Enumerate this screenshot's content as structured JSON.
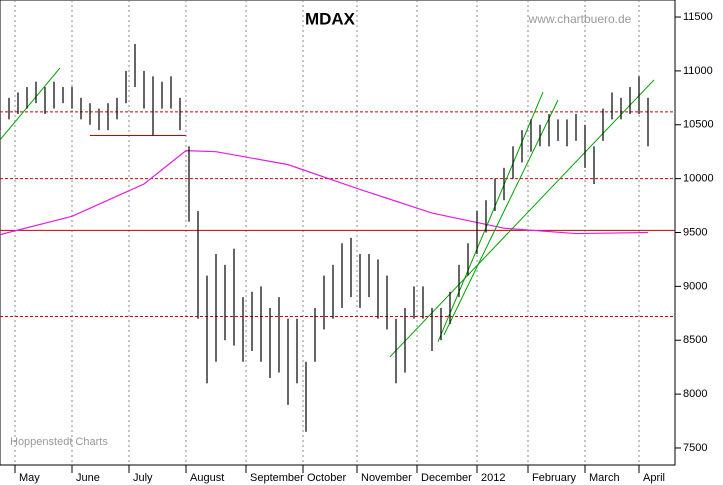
{
  "chart_data": {
    "type": "hilo",
    "title": "MDAX",
    "source": "www.chartbuero.de",
    "credit": "Hoppenstedt Charts",
    "xlim": [
      0,
      225
    ],
    "ylim": [
      7342,
      11658
    ],
    "yticks": [
      7500,
      8000,
      8500,
      9000,
      9500,
      10000,
      10500,
      11000,
      11500
    ],
    "xticks": [
      {
        "value": 5,
        "label": "May"
      },
      {
        "value": 24,
        "label": "June"
      },
      {
        "value": 43,
        "label": "July"
      },
      {
        "value": 62,
        "label": "August"
      },
      {
        "value": 82,
        "label": "September"
      },
      {
        "value": 101,
        "label": "October"
      },
      {
        "value": 119,
        "label": "November"
      },
      {
        "value": 139,
        "label": "December"
      },
      {
        "value": 159,
        "label": "2012"
      },
      {
        "value": 176,
        "label": "February"
      },
      {
        "value": 195,
        "label": "March"
      },
      {
        "value": 213,
        "label": "April"
      }
    ],
    "grid": true,
    "color": "#000000",
    "x": [
      0,
      3,
      6,
      9,
      12,
      15,
      18,
      21,
      24,
      27,
      30,
      33,
      36,
      39,
      42,
      45,
      48,
      51,
      54,
      57,
      60,
      63,
      66,
      69,
      72,
      75,
      78,
      81,
      84,
      87,
      90,
      93,
      96,
      99,
      102,
      105,
      108,
      111,
      114,
      117,
      120,
      123,
      126,
      129,
      132,
      135,
      138,
      141,
      144,
      147,
      150,
      153,
      156,
      159,
      162,
      165,
      168,
      171,
      174,
      177,
      180,
      183,
      186,
      189,
      192,
      195,
      198,
      201,
      204,
      207,
      210,
      213,
      216
    ],
    "high": [
      10600,
      10750,
      10800,
      10850,
      10900,
      10850,
      10900,
      10850,
      10850,
      10750,
      10700,
      10650,
      10700,
      10750,
      11000,
      11250,
      11000,
      10950,
      10900,
      10950,
      10750,
      10300,
      9700,
      9100,
      9300,
      9200,
      9350,
      8900,
      8950,
      9000,
      8800,
      8900,
      8700,
      8700,
      8300,
      8800,
      9100,
      9200,
      9400,
      9450,
      9300,
      9300,
      9250,
      9100,
      8700,
      8800,
      9000,
      9000,
      8800,
      8800,
      8950,
      9200,
      9400,
      9700,
      9800,
      10000,
      10100,
      10300,
      10450,
      10550,
      10500,
      10600,
      10550,
      10550,
      10600,
      10500,
      10300,
      10650,
      10800,
      10750,
      10850,
      10950,
      10750
    ],
    "low": [
      10450,
      10550,
      10600,
      10650,
      10700,
      10600,
      10650,
      10700,
      10650,
      10550,
      10500,
      10450,
      10450,
      10550,
      10700,
      10850,
      10650,
      10400,
      10650,
      10650,
      10450,
      9600,
      8700,
      8100,
      8300,
      8500,
      8450,
      8300,
      8400,
      8300,
      8150,
      8200,
      7900,
      8100,
      7650,
      8300,
      8600,
      8700,
      8800,
      8900,
      8800,
      8900,
      8700,
      8600,
      8100,
      8200,
      8700,
      8700,
      8400,
      8500,
      8650,
      8900,
      9100,
      9300,
      9500,
      9700,
      9800,
      10000,
      10150,
      10250,
      10300,
      10300,
      10350,
      10300,
      10350,
      10100,
      9950,
      10350,
      10550,
      10550,
      10600,
      10600,
      10300
    ],
    "ma": {
      "color": "#e020e0",
      "x": [
        0,
        24,
        48,
        62,
        72,
        96,
        120,
        144,
        168,
        192,
        216
      ],
      "values": [
        9480,
        9650,
        9950,
        10260,
        10250,
        10130,
        9900,
        9680,
        9540,
        9490,
        9500
      ]
    },
    "levels": [
      {
        "value": 10620,
        "color": "#cc0000",
        "style": "dashed"
      },
      {
        "value": 10000,
        "color": "#cc0000",
        "style": "dashed"
      },
      {
        "value": 8720,
        "color": "#cc0000",
        "style": "dashed"
      },
      {
        "value": 9520,
        "color": "#cc0000",
        "style": "solid"
      }
    ],
    "segments": [
      {
        "x": [
          30,
          62
        ],
        "y": [
          10400,
          10400
        ],
        "color": "#cc0000"
      },
      {
        "x": [
          0,
          20
        ],
        "y": [
          10359,
          11027
        ],
        "color": "#00a000"
      },
      {
        "x": [
          146,
          181
        ],
        "y": [
          8485,
          10804
        ],
        "color": "#00a000"
      },
      {
        "x": [
          148,
          186
        ],
        "y": [
          8550,
          10730
        ],
        "color": "#00a000"
      },
      {
        "x": [
          130,
          218
        ],
        "y": [
          8346,
          10916
        ],
        "color": "#00a000"
      }
    ]
  }
}
